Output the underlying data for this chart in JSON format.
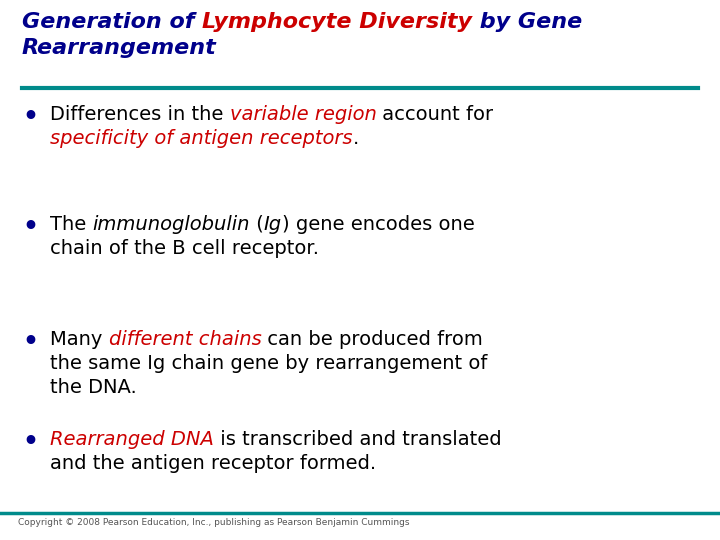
{
  "title_color": "#00008B",
  "title_highlight_color": "#CC0000",
  "teal_color": "#008B8B",
  "bg_color": "#FFFFFF",
  "bullet_color": "#00008B",
  "copyright": "Copyright © 2008 Pearson Education, Inc., publishing as Pearson Benjamin Cummings",
  "title_fs": 16,
  "bullet_fs": 14,
  "bullets": [
    {
      "segments": [
        {
          "text": "Differences in the ",
          "style": "normal",
          "color": "#000000"
        },
        {
          "text": "variable region",
          "style": "italic",
          "color": "#CC0000"
        },
        {
          "text": " account for",
          "style": "normal",
          "color": "#000000"
        },
        {
          "text": "\nspecificity of antigen receptors",
          "style": "italic",
          "color": "#CC0000"
        },
        {
          "text": ".",
          "style": "normal",
          "color": "#000000"
        }
      ]
    },
    {
      "segments": [
        {
          "text": "The ",
          "style": "normal",
          "color": "#000000"
        },
        {
          "text": "immunoglobulin",
          "style": "italic",
          "color": "#000000"
        },
        {
          "text": " (",
          "style": "normal",
          "color": "#000000"
        },
        {
          "text": "Ig",
          "style": "italic",
          "color": "#000000"
        },
        {
          "text": ") gene encodes one\nchain of the B cell receptor.",
          "style": "normal",
          "color": "#000000"
        }
      ]
    },
    {
      "segments": [
        {
          "text": "Many ",
          "style": "normal",
          "color": "#000000"
        },
        {
          "text": "different chains",
          "style": "italic",
          "color": "#CC0000"
        },
        {
          "text": " can be produced from\nthe same Ig chain gene by rearrangement of\nthe DNA.",
          "style": "normal",
          "color": "#000000"
        }
      ]
    },
    {
      "segments": [
        {
          "text": "Rearranged DNA",
          "style": "italic",
          "color": "#CC0000"
        },
        {
          "text": " is transcribed and translated\nand the antigen receptor formed.",
          "style": "normal",
          "color": "#000000"
        }
      ]
    }
  ],
  "title_segments_line1": [
    {
      "text": "Generation of ",
      "style": "bold_italic",
      "color": "#00008B"
    },
    {
      "text": "Lymphocyte Diversity",
      "style": "bold_italic",
      "color": "#CC0000"
    },
    {
      "text": " by Gene",
      "style": "bold_italic",
      "color": "#00008B"
    }
  ],
  "title_line2": "Rearrangement"
}
